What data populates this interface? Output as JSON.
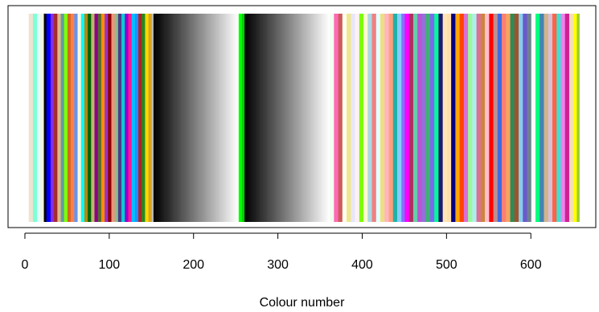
{
  "chart_data": {
    "type": "bar",
    "title": "",
    "xlabel": "Colour number",
    "ylabel": "",
    "xlim": [
      -20,
      677
    ],
    "ylim": [
      0,
      1
    ],
    "x_ticks": [
      0,
      100,
      200,
      300,
      400,
      500,
      600
    ],
    "grid": false,
    "legend": "none",
    "n_colours": 657,
    "values": "every colour number from 1 to 657 drawn as a full-height bar of value 1",
    "gray_ramps": [
      {
        "from": 153,
        "to": 253,
        "start_color": "#000000",
        "end_color": "#ffffff"
      },
      {
        "from": 261,
        "to": 361,
        "start_color": "#000000",
        "end_color": "#ffffff"
      }
    ],
    "color_segments": [
      {
        "from": 1,
        "to": 4,
        "color": "#ffffff"
      },
      {
        "from": 5,
        "to": 9,
        "color": "#f0e3d3"
      },
      {
        "from": 10,
        "to": 14,
        "color": "#7fffd4"
      },
      {
        "from": 15,
        "to": 18,
        "color": "#e0ffff"
      },
      {
        "from": 19,
        "to": 22,
        "color": "#f5f5dc"
      },
      {
        "from": 23,
        "to": 25,
        "color": "#000000"
      },
      {
        "from": 26,
        "to": 30,
        "color": "#0000ff"
      },
      {
        "from": 31,
        "to": 34,
        "color": "#8a2be2"
      },
      {
        "from": 35,
        "to": 38,
        "color": "#a52a2a"
      },
      {
        "from": 39,
        "to": 42,
        "color": "#deb887"
      },
      {
        "from": 43,
        "to": 46,
        "color": "#5f9ea0"
      },
      {
        "from": 47,
        "to": 50,
        "color": "#7fff00"
      },
      {
        "from": 51,
        "to": 54,
        "color": "#d2691e"
      },
      {
        "from": 55,
        "to": 58,
        "color": "#ff7f50"
      },
      {
        "from": 59,
        "to": 62,
        "color": "#6495ed"
      },
      {
        "from": 63,
        "to": 66,
        "color": "#fff8dc"
      },
      {
        "from": 67,
        "to": 70,
        "color": "#00ffff"
      },
      {
        "from": 71,
        "to": 74,
        "color": "#b8860b"
      },
      {
        "from": 75,
        "to": 78,
        "color": "#006400"
      },
      {
        "from": 79,
        "to": 82,
        "color": "#bdb76b"
      },
      {
        "from": 83,
        "to": 86,
        "color": "#8b008b"
      },
      {
        "from": 87,
        "to": 90,
        "color": "#556b2f"
      },
      {
        "from": 91,
        "to": 94,
        "color": "#ff8c00"
      },
      {
        "from": 95,
        "to": 98,
        "color": "#9932cc"
      },
      {
        "from": 99,
        "to": 102,
        "color": "#8b0000"
      },
      {
        "from": 103,
        "to": 106,
        "color": "#e9967a"
      },
      {
        "from": 107,
        "to": 110,
        "color": "#8fbc8f"
      },
      {
        "from": 111,
        "to": 114,
        "color": "#483d8b"
      },
      {
        "from": 115,
        "to": 118,
        "color": "#00ced1"
      },
      {
        "from": 119,
        "to": 122,
        "color": "#9400d3"
      },
      {
        "from": 123,
        "to": 126,
        "color": "#ff1493"
      },
      {
        "from": 127,
        "to": 130,
        "color": "#00bfff"
      },
      {
        "from": 131,
        "to": 134,
        "color": "#1e90ff"
      },
      {
        "from": 135,
        "to": 138,
        "color": "#b22222"
      },
      {
        "from": 139,
        "to": 142,
        "color": "#228b22"
      },
      {
        "from": 143,
        "to": 146,
        "color": "#ffd700"
      },
      {
        "from": 147,
        "to": 150,
        "color": "#daa520"
      },
      {
        "from": 151,
        "to": 152,
        "color": "#bebebe"
      },
      {
        "from": 254,
        "to": 257,
        "color": "#00ff00"
      },
      {
        "from": 258,
        "to": 260,
        "color": "#00cd00"
      },
      {
        "from": 362,
        "to": 366,
        "color": "#f0fff0"
      },
      {
        "from": 367,
        "to": 371,
        "color": "#ff69b4"
      },
      {
        "from": 372,
        "to": 376,
        "color": "#cd5c5c"
      },
      {
        "from": 377,
        "to": 381,
        "color": "#fffff0"
      },
      {
        "from": 382,
        "to": 386,
        "color": "#f0e68c"
      },
      {
        "from": 387,
        "to": 391,
        "color": "#e6e6fa"
      },
      {
        "from": 392,
        "to": 396,
        "color": "#fff0f5"
      },
      {
        "from": 397,
        "to": 401,
        "color": "#7cfc00"
      },
      {
        "from": 402,
        "to": 406,
        "color": "#fffacd"
      },
      {
        "from": 407,
        "to": 411,
        "color": "#add8e6"
      },
      {
        "from": 412,
        "to": 416,
        "color": "#f08080"
      },
      {
        "from": 417,
        "to": 421,
        "color": "#e0ffff"
      },
      {
        "from": 422,
        "to": 426,
        "color": "#eedd82"
      },
      {
        "from": 427,
        "to": 431,
        "color": "#ffb6c1"
      },
      {
        "from": 432,
        "to": 436,
        "color": "#ffa07a"
      },
      {
        "from": 437,
        "to": 441,
        "color": "#20b2aa"
      },
      {
        "from": 442,
        "to": 446,
        "color": "#87cefa"
      },
      {
        "from": 447,
        "to": 450,
        "color": "#8470ff"
      },
      {
        "from": 451,
        "to": 455,
        "color": "#ff00ff"
      },
      {
        "from": 456,
        "to": 460,
        "color": "#b03060"
      },
      {
        "from": 461,
        "to": 465,
        "color": "#66cdaa"
      },
      {
        "from": 466,
        "to": 470,
        "color": "#ba55d3"
      },
      {
        "from": 471,
        "to": 475,
        "color": "#9370db"
      },
      {
        "from": 476,
        "to": 480,
        "color": "#3cb371"
      },
      {
        "from": 481,
        "to": 485,
        "color": "#7b68ee"
      },
      {
        "from": 486,
        "to": 490,
        "color": "#00fa9a"
      },
      {
        "from": 491,
        "to": 495,
        "color": "#191970"
      },
      {
        "from": 496,
        "to": 500,
        "color": "#ffe4b5"
      },
      {
        "from": 501,
        "to": 505,
        "color": "#ffdead"
      },
      {
        "from": 506,
        "to": 510,
        "color": "#000080"
      },
      {
        "from": 511,
        "to": 515,
        "color": "#ffa500"
      },
      {
        "from": 516,
        "to": 520,
        "color": "#ff4500"
      },
      {
        "from": 521,
        "to": 525,
        "color": "#da70d6"
      },
      {
        "from": 526,
        "to": 530,
        "color": "#98fb98"
      },
      {
        "from": 531,
        "to": 535,
        "color": "#afeeee"
      },
      {
        "from": 536,
        "to": 540,
        "color": "#db7093"
      },
      {
        "from": 541,
        "to": 545,
        "color": "#cd853f"
      },
      {
        "from": 546,
        "to": 550,
        "color": "#ffc0cb"
      },
      {
        "from": 551,
        "to": 555,
        "color": "#ff0000"
      },
      {
        "from": 556,
        "to": 560,
        "color": "#bc8f8f"
      },
      {
        "from": 561,
        "to": 565,
        "color": "#4169e1"
      },
      {
        "from": 566,
        "to": 570,
        "color": "#fa8072"
      },
      {
        "from": 571,
        "to": 575,
        "color": "#f4a460"
      },
      {
        "from": 576,
        "to": 580,
        "color": "#2e8b57"
      },
      {
        "from": 581,
        "to": 585,
        "color": "#a0522d"
      },
      {
        "from": 586,
        "to": 590,
        "color": "#87ceeb"
      },
      {
        "from": 591,
        "to": 595,
        "color": "#6a5acd"
      },
      {
        "from": 596,
        "to": 600,
        "color": "#708090"
      },
      {
        "from": 601,
        "to": 605,
        "color": "#fffafa"
      },
      {
        "from": 606,
        "to": 610,
        "color": "#00ff7f"
      },
      {
        "from": 611,
        "to": 615,
        "color": "#4682b4"
      },
      {
        "from": 616,
        "to": 620,
        "color": "#d2b48c"
      },
      {
        "from": 621,
        "to": 625,
        "color": "#d8bfd8"
      },
      {
        "from": 626,
        "to": 630,
        "color": "#ff6347"
      },
      {
        "from": 631,
        "to": 635,
        "color": "#40e0d0"
      },
      {
        "from": 636,
        "to": 640,
        "color": "#ee82ee"
      },
      {
        "from": 641,
        "to": 645,
        "color": "#d02090"
      },
      {
        "from": 646,
        "to": 650,
        "color": "#f5deb3"
      },
      {
        "from": 651,
        "to": 654,
        "color": "#ffff00"
      },
      {
        "from": 655,
        "to": 657,
        "color": "#9acd32"
      }
    ]
  }
}
